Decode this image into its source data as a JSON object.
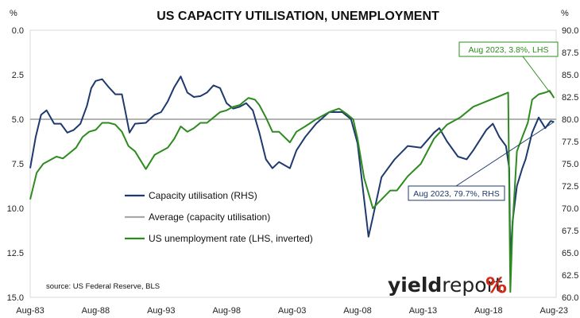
{
  "chart_data": {
    "type": "line",
    "title": "US CAPACITY UTILISATION, UNEMPLOYMENT",
    "left_axis": {
      "unit": "%",
      "ylim": [
        15.0,
        0.0
      ],
      "inverted": true,
      "ticks": [
        "0.0",
        "2.5",
        "5.0",
        "7.5",
        "10.0",
        "12.5",
        "15.0"
      ]
    },
    "right_axis": {
      "unit": "%",
      "ylim": [
        60.0,
        90.0
      ],
      "ticks": [
        "60.0",
        "62.5",
        "65.0",
        "67.5",
        "70.0",
        "72.5",
        "75.0",
        "77.5",
        "80.0",
        "82.5",
        "85.0",
        "87.5",
        "90.0"
      ]
    },
    "x_ticks": [
      "Aug-83",
      "Aug-88",
      "Aug-93",
      "Aug-98",
      "Aug-03",
      "Aug-08",
      "Aug-13",
      "Aug-18",
      "Aug-23"
    ],
    "x_range": [
      "1983-08",
      "2023-10"
    ],
    "grid": false,
    "legend_position": "center-left",
    "series": [
      {
        "name": "Capacity utilisation (RHS)",
        "axis": "right",
        "color": "#1f3a6e",
        "points": [
          [
            "1983-08",
            74.5
          ],
          [
            "1984-01",
            78.0
          ],
          [
            "1984-06",
            80.5
          ],
          [
            "1984-11",
            81.0
          ],
          [
            "1985-06",
            79.5
          ],
          [
            "1985-12",
            79.5
          ],
          [
            "1986-06",
            78.5
          ],
          [
            "1986-12",
            78.8
          ],
          [
            "1987-06",
            79.5
          ],
          [
            "1987-12",
            81.5
          ],
          [
            "1988-04",
            83.5
          ],
          [
            "1988-08",
            84.3
          ],
          [
            "1989-02",
            84.5
          ],
          [
            "1989-08",
            83.6
          ],
          [
            "1990-02",
            82.8
          ],
          [
            "1990-08",
            82.8
          ],
          [
            "1990-11",
            81.0
          ],
          [
            "1991-03",
            78.5
          ],
          [
            "1991-08",
            79.5
          ],
          [
            "1992-06",
            79.6
          ],
          [
            "1993-02",
            80.5
          ],
          [
            "1993-08",
            80.8
          ],
          [
            "1994-02",
            82.0
          ],
          [
            "1994-08",
            83.6
          ],
          [
            "1995-02",
            84.8
          ],
          [
            "1995-08",
            83.0
          ],
          [
            "1996-02",
            82.5
          ],
          [
            "1996-08",
            82.6
          ],
          [
            "1997-02",
            83.0
          ],
          [
            "1997-08",
            83.8
          ],
          [
            "1998-02",
            83.5
          ],
          [
            "1998-08",
            81.8
          ],
          [
            "1999-02",
            81.2
          ],
          [
            "1999-08",
            81.4
          ],
          [
            "2000-02",
            81.8
          ],
          [
            "2000-08",
            81.0
          ],
          [
            "2001-02",
            78.5
          ],
          [
            "2001-08",
            75.5
          ],
          [
            "2002-02",
            74.5
          ],
          [
            "2002-08",
            75.2
          ],
          [
            "2003-06",
            74.5
          ],
          [
            "2003-12",
            76.5
          ],
          [
            "2004-08",
            78.0
          ],
          [
            "2005-06",
            79.5
          ],
          [
            "2006-06",
            80.8
          ],
          [
            "2007-06",
            80.8
          ],
          [
            "2008-02",
            80.0
          ],
          [
            "2008-08",
            77.3
          ],
          [
            "2009-02",
            71.0
          ],
          [
            "2009-06",
            66.8
          ],
          [
            "2009-10",
            69.0
          ],
          [
            "2010-06",
            73.5
          ],
          [
            "2011-06",
            75.5
          ],
          [
            "2012-06",
            77.0
          ],
          [
            "2013-06",
            76.8
          ],
          [
            "2014-06",
            78.5
          ],
          [
            "2014-11",
            79.0
          ],
          [
            "2015-06",
            77.5
          ],
          [
            "2016-04",
            75.8
          ],
          [
            "2016-12",
            75.5
          ],
          [
            "2017-06",
            76.5
          ],
          [
            "2018-06",
            78.8
          ],
          [
            "2018-12",
            79.5
          ],
          [
            "2019-06",
            78.0
          ],
          [
            "2019-12",
            77.0
          ],
          [
            "2020-03",
            74.5
          ],
          [
            "2020-04",
            64.0
          ],
          [
            "2020-06",
            68.5
          ],
          [
            "2020-10",
            72.5
          ],
          [
            "2021-03",
            74.5
          ],
          [
            "2021-06",
            75.5
          ],
          [
            "2021-12",
            78.5
          ],
          [
            "2022-06",
            80.2
          ],
          [
            "2022-12",
            79.0
          ],
          [
            "2023-03",
            79.5
          ],
          [
            "2023-05",
            79.8
          ],
          [
            "2023-08",
            79.7
          ]
        ]
      },
      {
        "name": "Average (capacity utilisation)",
        "axis": "right",
        "color": "#a8a8a8",
        "points": [
          [
            "1983-08",
            80.0
          ],
          [
            "2023-10",
            80.0
          ]
        ]
      },
      {
        "name": "US unemployment rate (LHS, inverted)",
        "axis": "left",
        "color": "#2e8b1f",
        "points": [
          [
            "1983-08",
            9.5
          ],
          [
            "1984-02",
            8.0
          ],
          [
            "1984-08",
            7.5
          ],
          [
            "1985-02",
            7.3
          ],
          [
            "1985-08",
            7.1
          ],
          [
            "1986-02",
            7.2
          ],
          [
            "1986-08",
            6.9
          ],
          [
            "1987-02",
            6.6
          ],
          [
            "1987-08",
            6.0
          ],
          [
            "1988-02",
            5.7
          ],
          [
            "1988-08",
            5.6
          ],
          [
            "1989-02",
            5.2
          ],
          [
            "1989-08",
            5.2
          ],
          [
            "1990-02",
            5.3
          ],
          [
            "1990-08",
            5.7
          ],
          [
            "1991-02",
            6.5
          ],
          [
            "1991-08",
            6.8
          ],
          [
            "1992-06",
            7.8
          ],
          [
            "1993-02",
            7.0
          ],
          [
            "1993-08",
            6.8
          ],
          [
            "1994-02",
            6.6
          ],
          [
            "1994-08",
            6.1
          ],
          [
            "1995-02",
            5.4
          ],
          [
            "1995-08",
            5.7
          ],
          [
            "1996-02",
            5.5
          ],
          [
            "1996-08",
            5.2
          ],
          [
            "1997-02",
            5.2
          ],
          [
            "1997-08",
            4.9
          ],
          [
            "1998-02",
            4.6
          ],
          [
            "1998-08",
            4.5
          ],
          [
            "1999-02",
            4.3
          ],
          [
            "1999-08",
            4.2
          ],
          [
            "2000-04",
            3.8
          ],
          [
            "2000-10",
            3.9
          ],
          [
            "2001-02",
            4.2
          ],
          [
            "2001-08",
            4.9
          ],
          [
            "2002-02",
            5.7
          ],
          [
            "2002-08",
            5.7
          ],
          [
            "2003-06",
            6.3
          ],
          [
            "2003-12",
            5.7
          ],
          [
            "2004-08",
            5.4
          ],
          [
            "2005-06",
            5.0
          ],
          [
            "2006-06",
            4.6
          ],
          [
            "2007-03",
            4.4
          ],
          [
            "2007-10",
            4.7
          ],
          [
            "2008-04",
            5.0
          ],
          [
            "2008-08",
            6.1
          ],
          [
            "2009-02",
            8.3
          ],
          [
            "2009-10",
            10.0
          ],
          [
            "2010-06",
            9.5
          ],
          [
            "2011-02",
            9.0
          ],
          [
            "2011-08",
            9.0
          ],
          [
            "2012-06",
            8.2
          ],
          [
            "2013-06",
            7.5
          ],
          [
            "2014-06",
            6.1
          ],
          [
            "2015-06",
            5.3
          ],
          [
            "2016-06",
            4.9
          ],
          [
            "2017-06",
            4.3
          ],
          [
            "2018-06",
            4.0
          ],
          [
            "2019-06",
            3.7
          ],
          [
            "2020-02",
            3.5
          ],
          [
            "2020-04",
            14.7
          ],
          [
            "2020-06",
            11.0
          ],
          [
            "2020-10",
            6.8
          ],
          [
            "2021-03",
            6.0
          ],
          [
            "2021-08",
            5.2
          ],
          [
            "2021-12",
            3.9
          ],
          [
            "2022-06",
            3.6
          ],
          [
            "2022-12",
            3.5
          ],
          [
            "2023-04",
            3.4
          ],
          [
            "2023-08",
            3.8
          ]
        ]
      }
    ],
    "annotations": [
      {
        "text": "Aug 2023, 3.8%, LHS",
        "color": "#2e8b1f",
        "target_series": "US unemployment rate (LHS, inverted)",
        "target_date": "2023-08"
      },
      {
        "text": "Aug 2023, 79.7%, RHS",
        "color": "#1f3a6e",
        "target_series": "Capacity utilisation (RHS)",
        "target_date": "2023-08"
      }
    ],
    "source": "source: US Federal Reserve, BLS"
  },
  "brand": {
    "name": "yieldreport",
    "mark": "%"
  }
}
